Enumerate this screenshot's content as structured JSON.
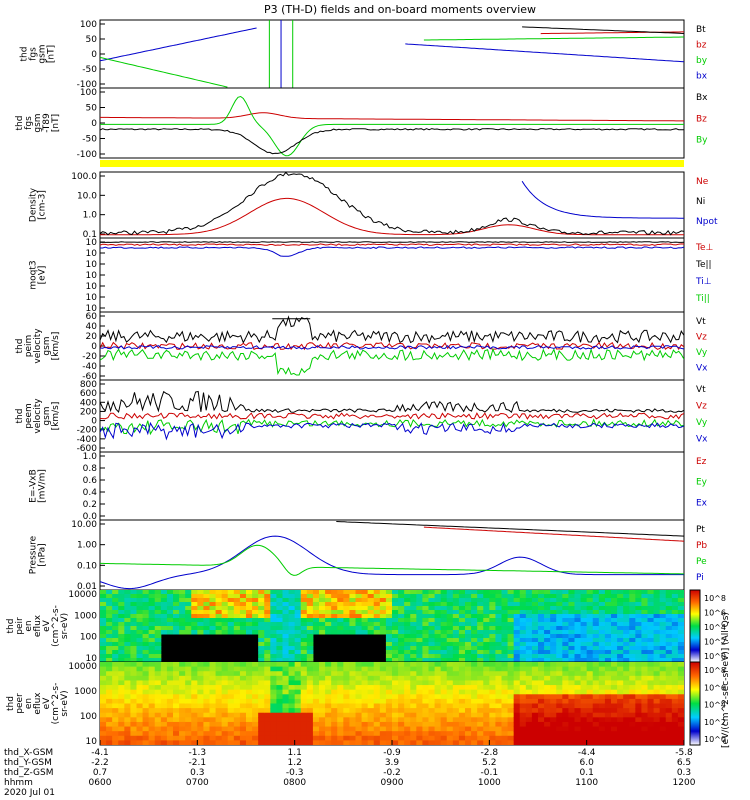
{
  "chart_data": {
    "title": "P3 (TH-D) fields and on-board moments overview",
    "panels": [
      {
        "id": "fgs",
        "type": "line",
        "ylabel": [
          "thd",
          "fgs",
          "gsm",
          "[nT]"
        ],
        "yticks": [
          "100",
          "50",
          "0",
          "-50",
          "-100"
        ],
        "ylim": [
          -100,
          100
        ],
        "legend": [
          {
            "name": "Bt",
            "color": "#000000"
          },
          {
            "name": "bz",
            "color": "#cc0000"
          },
          {
            "name": "by",
            "color": "#00cc00"
          },
          {
            "name": "bx",
            "color": "#0000cc"
          }
        ]
      },
      {
        "id": "fgs_t89",
        "type": "line",
        "ylabel": [
          "thd",
          "fgs",
          "gsm",
          "-T89",
          "[nT]"
        ],
        "yticks": [
          "100",
          "50",
          "0",
          "-50",
          "-100"
        ],
        "ylim": [
          -100,
          100
        ],
        "legend": [
          {
            "name": "Bx",
            "color": "#000000"
          },
          {
            "name": "Bz",
            "color": "#cc0000"
          },
          {
            "name": "By",
            "color": "#00cc00"
          }
        ]
      },
      {
        "id": "density",
        "type": "line",
        "ylabel": [
          "Density",
          "[cm-3]"
        ],
        "yticks": [
          "100.0",
          "10.0",
          "1.0",
          "0.1"
        ],
        "log": true,
        "legend": [
          {
            "name": "Ne",
            "color": "#cc0000"
          },
          {
            "name": "Ni",
            "color": "#000000"
          },
          {
            "name": "Npot",
            "color": "#0000cc"
          }
        ]
      },
      {
        "id": "temp",
        "type": "line",
        "ylabel": [
          "moqt3",
          "[eV]"
        ],
        "yticks": [
          "10",
          "10",
          "10",
          "10",
          "10",
          "10",
          "10"
        ],
        "log": true,
        "legend": [
          {
            "name": "Te⊥",
            "color": "#cc0000"
          },
          {
            "name": "Te||",
            "color": "#000000"
          },
          {
            "name": "Ti⊥",
            "color": "#0000cc"
          },
          {
            "name": "Ti||",
            "color": "#00cc00"
          }
        ]
      },
      {
        "id": "peim",
        "type": "line",
        "ylabel": [
          "thd",
          "peim",
          "velocity",
          "gsm",
          "[km/s]"
        ],
        "yticks": [
          "60",
          "40",
          "20",
          "0",
          "-20",
          "-40",
          "-60"
        ],
        "ylim": [
          -60,
          60
        ],
        "legend": [
          {
            "name": "Vt",
            "color": "#000000"
          },
          {
            "name": "Vz",
            "color": "#cc0000"
          },
          {
            "name": "Vy",
            "color": "#00cc00"
          },
          {
            "name": "Vx",
            "color": "#0000cc"
          }
        ]
      },
      {
        "id": "peem",
        "type": "line",
        "ylabel": [
          "thd",
          "peem",
          "velocity",
          "gsm",
          "[km/s]"
        ],
        "yticks": [
          "800",
          "600",
          "400",
          "200",
          "0",
          "-200",
          "-400",
          "-600"
        ],
        "ylim": [
          -600,
          800
        ],
        "legend": [
          {
            "name": "Vt",
            "color": "#000000"
          },
          {
            "name": "Vz",
            "color": "#cc0000"
          },
          {
            "name": "Vy",
            "color": "#00cc00"
          },
          {
            "name": "Vx",
            "color": "#0000cc"
          }
        ]
      },
      {
        "id": "efield",
        "type": "line",
        "ylabel": [
          "E=-VxB",
          "[mV/m]"
        ],
        "yticks": [
          "1.0",
          "0.8",
          "0.6",
          "0.4",
          "0.2",
          "0.0"
        ],
        "ylim": [
          0,
          1
        ],
        "legend": [
          {
            "name": "Ez",
            "color": "#cc0000"
          },
          {
            "name": "Ey",
            "color": "#00cc00"
          },
          {
            "name": "Ex",
            "color": "#0000cc"
          }
        ]
      },
      {
        "id": "pressure",
        "type": "line",
        "ylabel": [
          "Pressure",
          "[nPa]"
        ],
        "yticks": [
          "10.00",
          "1.00",
          "0.10",
          "0.01"
        ],
        "log": true,
        "legend": [
          {
            "name": "Pt",
            "color": "#000000"
          },
          {
            "name": "Pb",
            "color": "#cc0000"
          },
          {
            "name": "Pe",
            "color": "#00cc00"
          },
          {
            "name": "Pi",
            "color": "#0000cc"
          }
        ]
      },
      {
        "id": "peir",
        "type": "heatmap",
        "ylabel": [
          "thd",
          "peir",
          "en",
          "eflux",
          "eV",
          "(cm^2-s-",
          "sr-eV)"
        ],
        "yticks": [
          "10000",
          "1000",
          "100",
          "10"
        ],
        "log": true,
        "colorbar": [
          "10^8",
          "10^6",
          "10^4",
          "10^2",
          "10^0"
        ]
      },
      {
        "id": "peer",
        "type": "heatmap",
        "ylabel": [
          "thd",
          "peer",
          "en",
          "eflux",
          "eV",
          "(cm^2-s-",
          "sr-eV)"
        ],
        "yticks": [
          "10000",
          "1000",
          "100",
          "10"
        ],
        "log": true,
        "colorbar": [
          "10^8",
          "10^6",
          "10^4",
          "10^2",
          "10^0"
        ]
      }
    ],
    "colorbar_label": "[eV/(cm^2-sec-sr-eV)] (All Qs)",
    "orbit": {
      "labels": [
        "thd_X-GSM",
        "thd_Y-GSM",
        "thd_Z-GSM",
        "hhmm",
        "2020 Jul 01"
      ],
      "x": [
        "-4.1",
        "-1.3",
        "1.1",
        "-0.9",
        "-2.8",
        "-4.4",
        "-5.8"
      ],
      "y": [
        "-2.2",
        "-2.1",
        "1.2",
        "3.9",
        "5.2",
        "6.0",
        "6.5"
      ],
      "z": [
        "0.7",
        "0.3",
        "-0.3",
        "-0.2",
        "-0.1",
        "0.1",
        "0.3"
      ],
      "time": [
        "0600",
        "0700",
        "0800",
        "0900",
        "1000",
        "1100",
        "1200"
      ]
    }
  }
}
